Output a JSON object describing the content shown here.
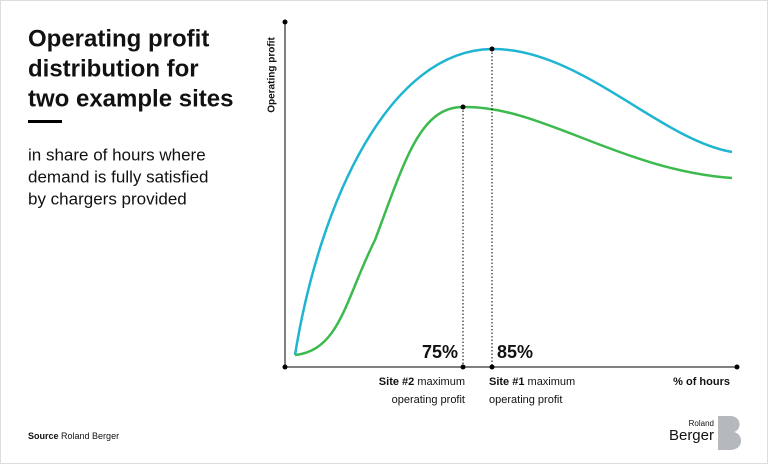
{
  "header": {
    "title_lines": [
      "Operating profit",
      "distribution for",
      "two example sites"
    ],
    "subtitle_lines": [
      "in share of hours where",
      "demand is fully satisfied",
      "by chargers provided"
    ]
  },
  "chart": {
    "y_axis_label": "Operating profit",
    "x_axis_label": "% of hours",
    "markers": [
      {
        "value_label": "75%",
        "caption_bold": "Site #2",
        "caption_rest": "maximum",
        "caption_line2": "operating profit"
      },
      {
        "value_label": "85%",
        "caption_bold": "Site #1",
        "caption_rest": "maximum",
        "caption_line2": "operating profit"
      }
    ]
  },
  "footer": {
    "source_label": "Source",
    "source_text": "Roland Berger",
    "logo_top": "Roland",
    "logo_bottom": "Berger"
  }
}
